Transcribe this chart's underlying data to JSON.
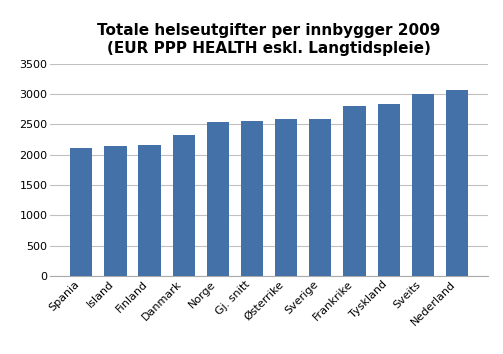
{
  "title": "Totale helseutgifter per innbygger 2009\n(EUR PPP HEALTH eskl. Langtidspleie)",
  "categories": [
    "Spania",
    "Island",
    "Finland",
    "Danmark",
    "Norge",
    "Gj. snitt",
    "Østerrike",
    "Sverige",
    "Frankrike",
    "Tyskland",
    "Sveits",
    "Nederland"
  ],
  "values": [
    2110,
    2150,
    2155,
    2325,
    2545,
    2560,
    2590,
    2590,
    2800,
    2835,
    3000,
    3060
  ],
  "bar_color": "#4472a8",
  "ylim": [
    0,
    3500
  ],
  "yticks": [
    0,
    500,
    1000,
    1500,
    2000,
    2500,
    3000,
    3500
  ],
  "background_color": "#ffffff",
  "title_fontsize": 11,
  "tick_fontsize": 8,
  "grid_color": "#c0c0c0",
  "bar_width": 0.65
}
